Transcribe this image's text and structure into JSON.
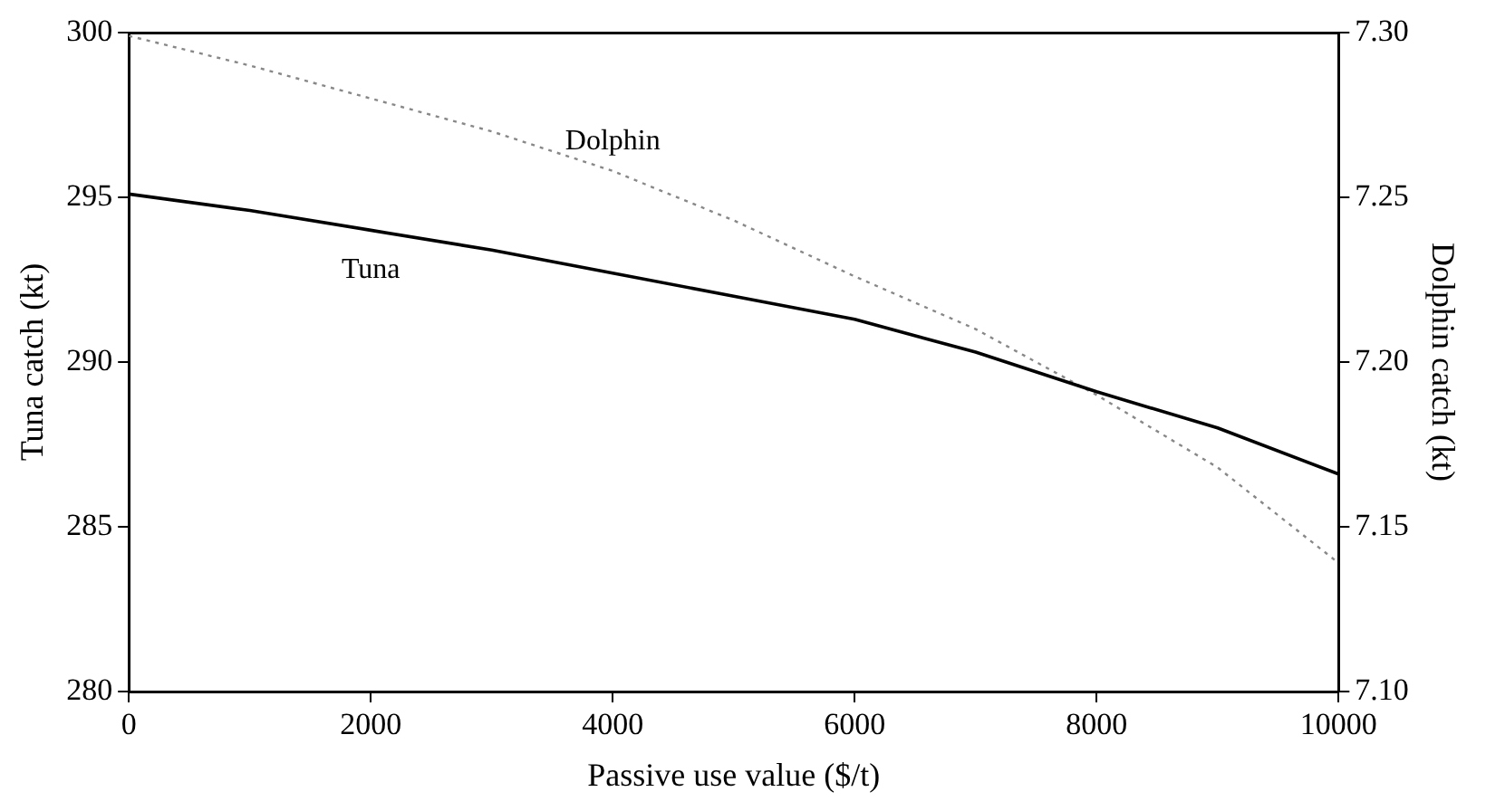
{
  "chart_data": {
    "type": "line",
    "xlabel": "Passive use value ($/t)",
    "ylabel": "Tuna catch (kt)",
    "y2label": "Dolphin catch (kt)",
    "x": [
      0,
      1000,
      2000,
      3000,
      4000,
      5000,
      6000,
      7000,
      8000,
      9000,
      10000
    ],
    "series": [
      {
        "name": "Tuna",
        "color": "#000000",
        "line_style": "solid",
        "values": [
          295.1,
          294.6,
          294.0,
          293.4,
          292.7,
          292.0,
          291.3,
          290.3,
          289.1,
          288.0,
          286.6
        ]
      },
      {
        "name": "Dolphin",
        "color": "#888888",
        "line_style": "dotted",
        "axis": "y2",
        "values": [
          7.299,
          7.29,
          7.28,
          7.27,
          7.258,
          7.243,
          7.226,
          7.21,
          7.19,
          7.168,
          7.139
        ]
      }
    ],
    "xlim": [
      0,
      10000
    ],
    "xticks": [
      0,
      2000,
      4000,
      6000,
      8000,
      10000
    ],
    "ylim": [
      280,
      300
    ],
    "yticks": [
      280,
      285,
      290,
      295,
      300
    ],
    "y2lim": [
      7.1,
      7.3
    ],
    "y2ticks": [
      {
        "value": 7.1,
        "label": "7.10"
      },
      {
        "value": 7.15,
        "label": "7.15"
      },
      {
        "value": 7.2,
        "label": "7.20"
      },
      {
        "value": 7.25,
        "label": "7.25"
      },
      {
        "value": 7.3,
        "label": "7.30"
      }
    ],
    "grid": false,
    "legend": false,
    "marker": "none"
  }
}
